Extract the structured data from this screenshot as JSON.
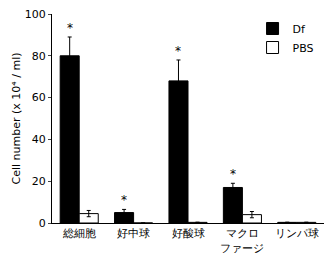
{
  "chart_data": {
    "type": "bar",
    "y_label": "Cell number (x 10⁴ / ml)",
    "categories": [
      "総細胞",
      "好中球",
      "好酸球",
      "マクロ\nファージ",
      "リンパ球"
    ],
    "series": [
      {
        "name": "Df",
        "color": "#000000",
        "values": [
          80,
          5,
          68,
          17,
          0.3
        ],
        "errors": [
          9,
          1.5,
          10,
          2,
          0.1
        ],
        "annotations": [
          "*",
          "*",
          "*",
          "*",
          null
        ]
      },
      {
        "name": "PBS",
        "color": "#ffffff",
        "values": [
          4.5,
          0,
          0.3,
          4,
          0.3
        ],
        "errors": [
          1.5,
          0,
          0.1,
          1.5,
          0.1
        ]
      }
    ],
    "ylim": [
      0,
      100
    ],
    "yticks": [
      0,
      20,
      40,
      60,
      80,
      100
    ],
    "grid": false,
    "legend": "upper right"
  }
}
